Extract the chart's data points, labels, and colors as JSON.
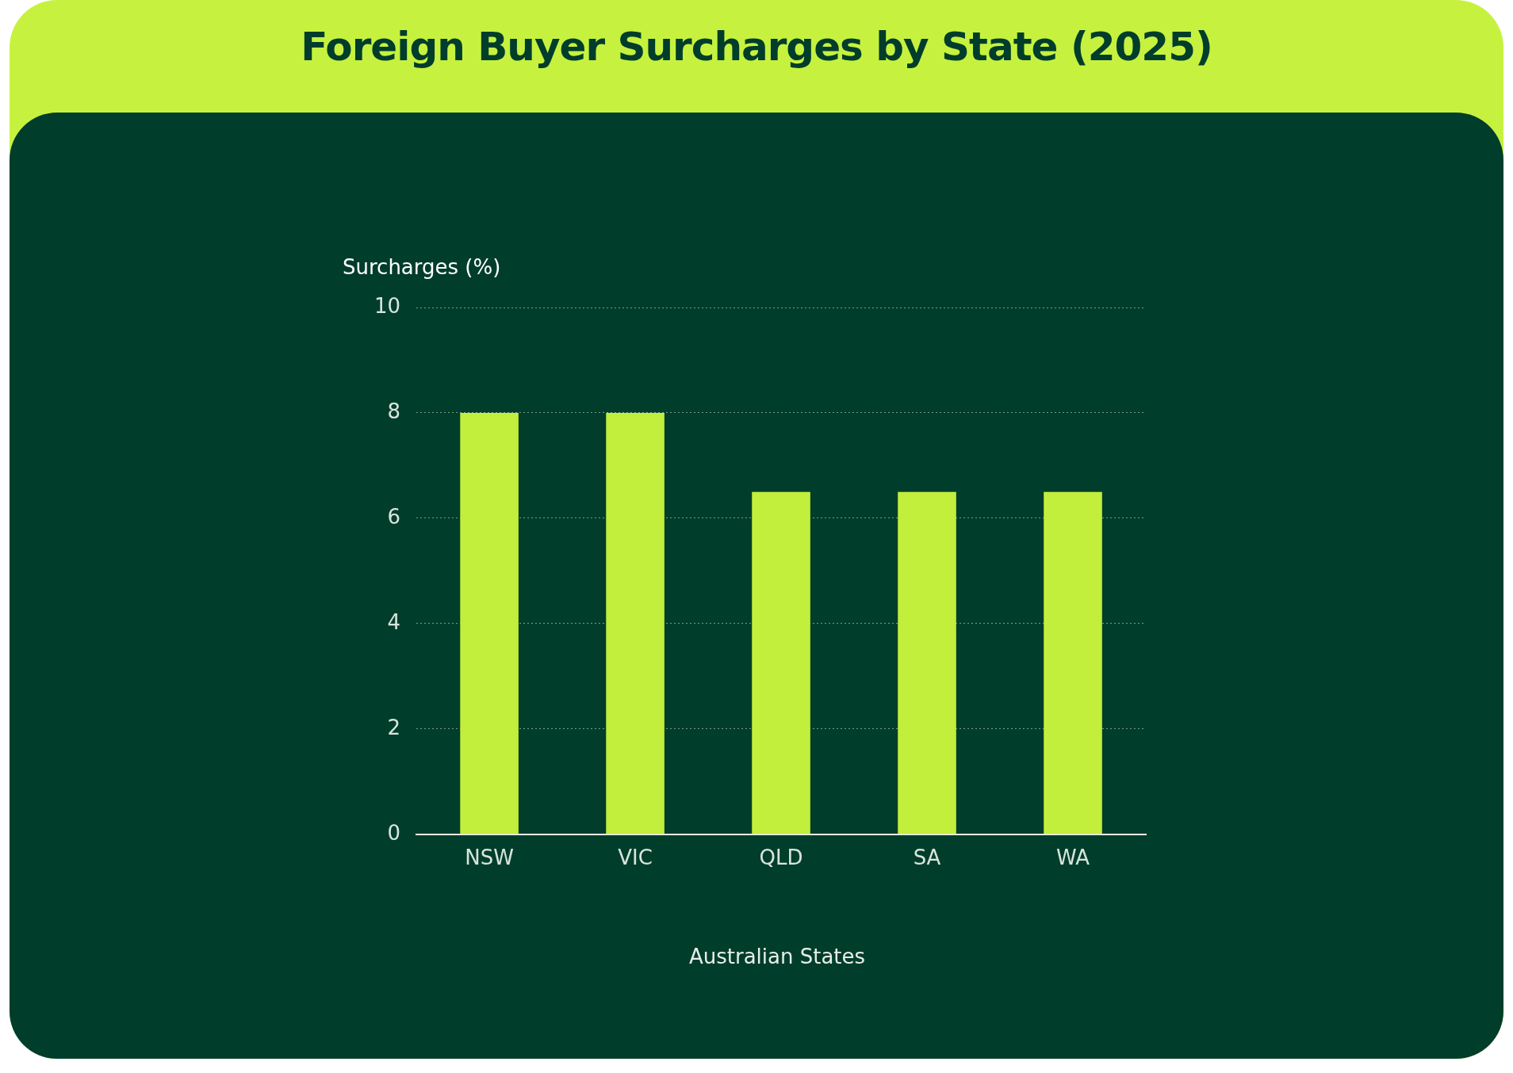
{
  "chart_data": {
    "type": "bar",
    "title": "Foreign Buyer Surcharges by State (2025)",
    "xlabel": "Australian States",
    "ylabel": "Surcharges (%)",
    "categories": [
      "NSW",
      "VIC",
      "QLD",
      "SA",
      "WA"
    ],
    "values": [
      8,
      8,
      6.5,
      6.5,
      6.5
    ],
    "color": "#c2ee3c",
    "ylim": [
      0,
      10
    ],
    "yticks": [
      0,
      2,
      4,
      6,
      8,
      10
    ],
    "grid": "y"
  }
}
